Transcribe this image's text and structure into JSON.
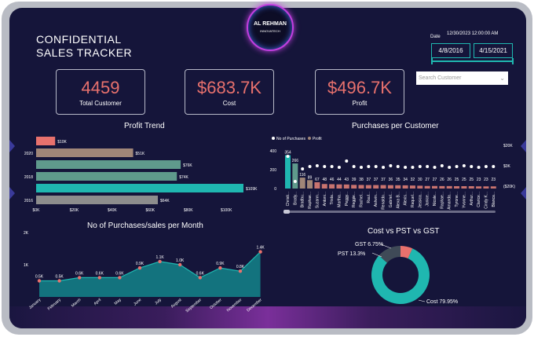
{
  "header": {
    "title_line1": "CONFIDENTIAL",
    "title_line2": "SALES TRACKER",
    "logo_line1": "AL REHMAN",
    "logo_line2": "INNOVATECH"
  },
  "filters": {
    "date_label": "Date",
    "timestamp": "12/30/2023 12:00:00 AM",
    "start_date": "4/8/2016",
    "end_date": "4/15/2021",
    "search_placeholder": "Search Customer"
  },
  "kpis": [
    {
      "value": "4459",
      "label": "Total Customer"
    },
    {
      "value": "$683.7K",
      "label": "Cost"
    },
    {
      "value": "$496.7K",
      "label": "Profit"
    }
  ],
  "colors": {
    "background": "#15153a",
    "teal": "#1fb7b0",
    "coral": "#e8716d",
    "tan": "#a08678",
    "sage": "#5f9a8c",
    "gray": "#3f4a57"
  },
  "titles": {
    "profit_trend": "Profit Trend",
    "purchases_per_customer": "Purchases per Customer",
    "purchases_per_month": "No of Purchases/sales per Month",
    "cost_pst_gst": "Cost vs PST vs GST"
  },
  "chart_data": [
    {
      "id": "profit_trend",
      "type": "bar",
      "orientation": "horizontal",
      "title": "Profit Trend",
      "categories": [
        "",
        "2020",
        "",
        "2018",
        "",
        "2016"
      ],
      "values": [
        10,
        51,
        76,
        74,
        109,
        64
      ],
      "data_labels": [
        "$10K",
        "$51K",
        "$76K",
        "$74K",
        "$109K",
        "$64K"
      ],
      "colors": [
        "#e8716d",
        "#a08678",
        "#5f9a8c",
        "#5f9a8c",
        "#1fb7b0",
        "#8d8d8d"
      ],
      "x_ticks": [
        "$0K",
        "$20K",
        "$40K",
        "$60K",
        "$80K",
        "$100K"
      ],
      "xlim": [
        0,
        109
      ]
    },
    {
      "id": "purchases_per_customer",
      "type": "bar",
      "title": "Purchases per Customer",
      "legend": [
        "No of Purchases",
        "Profit"
      ],
      "categories": [
        "Christi...",
        "Brady...",
        "Bradbu...",
        "Raphae...",
        "Suzann...",
        "Antoni...",
        "Trista...",
        "Martha...",
        "Peggy...",
        "Reggie...",
        "Rachel...",
        "Raul...",
        "Ashvin...",
        "Renaldo...",
        "Gabriel...",
        "Alexa B...",
        "Alexis...",
        "Raquel...",
        "Jessica...",
        "Janice...",
        "Nicole...",
        "Raphae...",
        "Amanda...",
        "Tyrone...",
        "Yvonne...",
        "Arthur...",
        "Clarice...",
        "Cindy K...",
        "Blanca..."
      ],
      "purchases": [
        354,
        266,
        116,
        89,
        67,
        48,
        46,
        44,
        43,
        39,
        38,
        37,
        37,
        37,
        36,
        35,
        34,
        32,
        30,
        27,
        27,
        26,
        26,
        25,
        25,
        25,
        23,
        23,
        23
      ],
      "left_ticks": [
        "0",
        "200",
        "400"
      ],
      "right_ticks": [
        "$20K",
        "$0K",
        "($20K)"
      ]
    },
    {
      "id": "purchases_per_month",
      "type": "area",
      "title": "No of Purchases/sales per Month",
      "categories": [
        "January",
        "February",
        "March",
        "April",
        "May",
        "June",
        "July",
        "August",
        "September",
        "October",
        "November",
        "December"
      ],
      "values": [
        0.5,
        0.5,
        0.6,
        0.6,
        0.6,
        0.9,
        1.1,
        1.0,
        0.6,
        0.9,
        0.8,
        1.4
      ],
      "data_labels": [
        "0.5K",
        "0.5K",
        "0.6K",
        "0.6K",
        "0.6K",
        "0.9K",
        "1.1K",
        "1.0K",
        "0.6K",
        "0.9K",
        "0.8K",
        "1.4K"
      ],
      "y_ticks": [
        "1K",
        "2K"
      ],
      "ylim": [
        0,
        2
      ]
    },
    {
      "id": "cost_pst_gst",
      "type": "pie",
      "title": "Cost vs PST vs GST",
      "labels": [
        "Cost",
        "PST",
        "GST"
      ],
      "values": [
        79.95,
        13.3,
        6.75
      ],
      "data_labels": [
        "Cost 79.95%",
        "PST 13.3%",
        "GST 6.75%"
      ],
      "colors": [
        "#1fb7b0",
        "#3f4a57",
        "#e8716d"
      ]
    }
  ]
}
